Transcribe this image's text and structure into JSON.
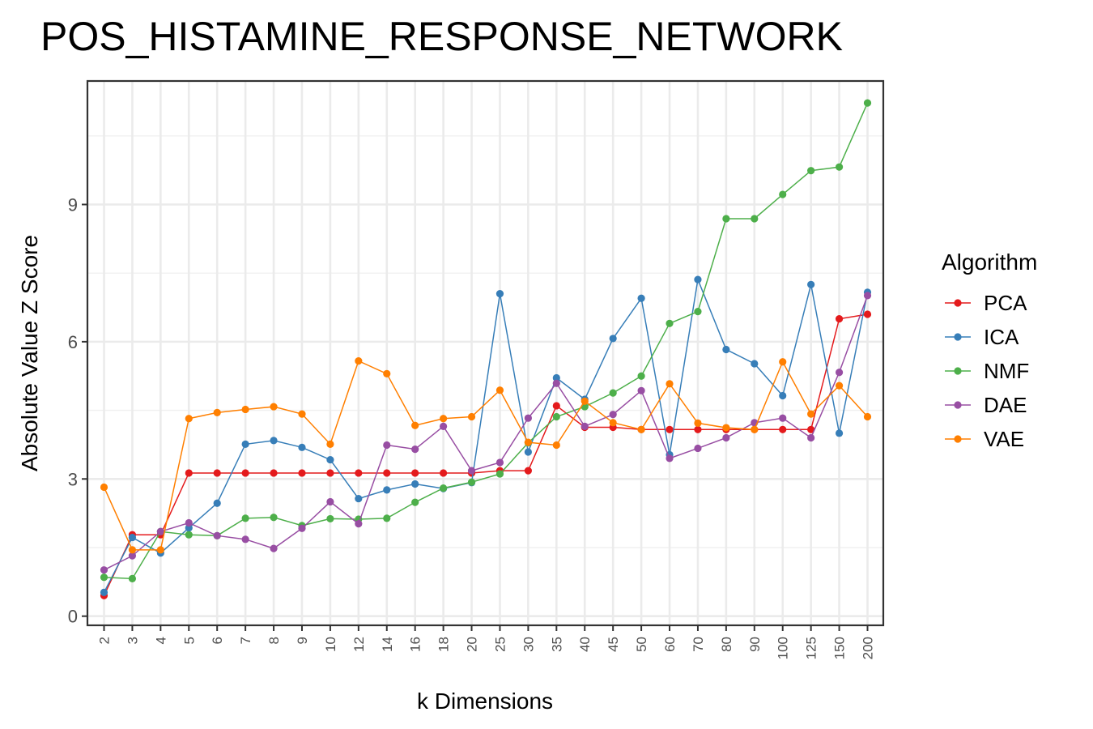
{
  "chart_data": {
    "type": "line",
    "title": "POS_HISTAMINE_RESPONSE_NETWORK",
    "xlabel": "k Dimensions",
    "ylabel": "Absolute Value Z Score",
    "categories": [
      "2",
      "3",
      "4",
      "5",
      "6",
      "7",
      "8",
      "9",
      "10",
      "12",
      "14",
      "16",
      "18",
      "20",
      "25",
      "30",
      "35",
      "40",
      "45",
      "50",
      "60",
      "70",
      "80",
      "90",
      "100",
      "125",
      "150",
      "200"
    ],
    "ylim": [
      -0.2,
      11.7
    ],
    "yticks": [
      0,
      3,
      6,
      9
    ],
    "ytick_labels": [
      "0",
      "3",
      "6",
      "9"
    ],
    "grid": true,
    "legend": {
      "title": "Algorithm",
      "position": "right"
    },
    "series": [
      {
        "name": "PCA",
        "color": "#E41A1C",
        "values": [
          0.45,
          1.78,
          1.78,
          3.13,
          3.13,
          3.13,
          3.13,
          3.13,
          3.13,
          3.13,
          3.13,
          3.13,
          3.13,
          3.13,
          3.18,
          3.18,
          4.6,
          4.13,
          4.13,
          4.08,
          4.08,
          4.08,
          4.08,
          4.08,
          4.08,
          4.08,
          6.5,
          6.6
        ]
      },
      {
        "name": "ICA",
        "color": "#377EB8",
        "values": [
          0.52,
          1.72,
          1.38,
          1.93,
          2.47,
          3.76,
          3.84,
          3.69,
          3.42,
          2.57,
          2.76,
          2.89,
          2.79,
          2.92,
          7.05,
          3.59,
          5.21,
          4.74,
          6.07,
          6.95,
          3.53,
          7.36,
          5.83,
          5.52,
          4.82,
          7.25,
          4.0,
          7.08
        ]
      },
      {
        "name": "NMF",
        "color": "#4DAF4A",
        "values": [
          0.85,
          0.82,
          1.85,
          1.78,
          1.76,
          2.14,
          2.16,
          1.98,
          2.13,
          2.12,
          2.14,
          2.49,
          2.8,
          2.93,
          3.11,
          3.79,
          4.36,
          4.58,
          4.88,
          5.25,
          6.4,
          6.66,
          8.69,
          8.69,
          9.22,
          9.74,
          9.82,
          11.22
        ]
      },
      {
        "name": "DAE",
        "color": "#984EA3",
        "values": [
          1.01,
          1.32,
          1.85,
          2.04,
          1.76,
          1.68,
          1.48,
          1.92,
          2.5,
          2.02,
          3.74,
          3.65,
          4.15,
          3.18,
          3.36,
          4.33,
          5.09,
          4.15,
          4.41,
          4.93,
          3.45,
          3.67,
          3.9,
          4.23,
          4.33,
          3.9,
          5.33,
          7.01
        ]
      },
      {
        "name": "VAE",
        "color": "#FF7F00",
        "values": [
          2.82,
          1.45,
          1.45,
          4.32,
          4.45,
          4.52,
          4.58,
          4.42,
          3.76,
          5.58,
          5.3,
          4.17,
          4.32,
          4.36,
          4.94,
          3.8,
          3.74,
          4.7,
          4.23,
          4.08,
          5.08,
          4.22,
          4.12,
          4.08,
          5.56,
          4.42,
          5.04,
          4.36
        ]
      }
    ]
  }
}
